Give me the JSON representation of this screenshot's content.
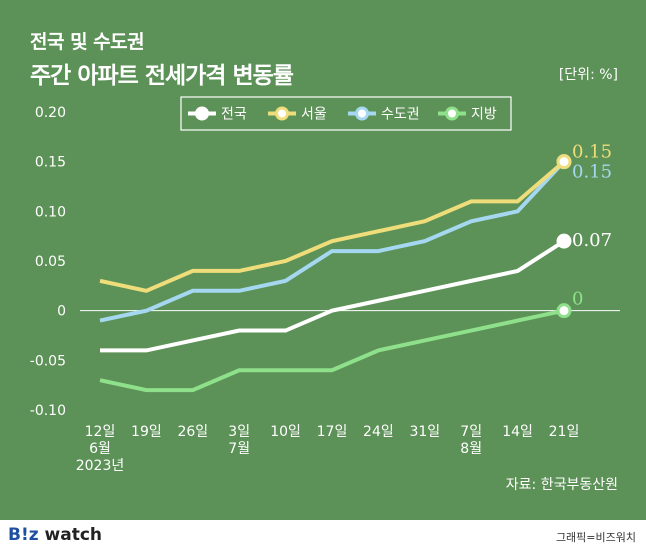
{
  "title_line1": "전국 및 수도권",
  "title_line2": "주간 아파트 전세가격 변동률",
  "unit": "[단위: %]",
  "source": "자료: 한국부동산원",
  "logo": {
    "b": "B",
    "iz": "!z",
    "watch": "watch"
  },
  "credit": "그래픽=비즈워치",
  "colors": {
    "background": "#5c9157",
    "national": "#ffffff",
    "seoul": "#eedd7a",
    "capital": "#a5d8f0",
    "regional": "#8fe08a"
  },
  "chart_data": {
    "type": "line",
    "x_ticks": [
      [
        "12일",
        "6월",
        "2023년"
      ],
      [
        "19일"
      ],
      [
        "26일"
      ],
      [
        "3일",
        "7월"
      ],
      [
        "10일"
      ],
      [
        "17일"
      ],
      [
        "24일"
      ],
      [
        "31일"
      ],
      [
        "7일",
        "8월"
      ],
      [
        "14일"
      ],
      [
        "21일"
      ]
    ],
    "y_ticks": [
      "0.20",
      "0.15",
      "0.10",
      "0.05",
      "0",
      "-0.05",
      "-0.10"
    ],
    "y_tick_values": [
      0.2,
      0.15,
      0.1,
      0.05,
      0,
      -0.05,
      -0.1
    ],
    "ylim": [
      -0.1,
      0.2
    ],
    "legend_position": "top",
    "series": [
      {
        "name": "전국",
        "color": "#ffffff",
        "values": [
          -0.04,
          -0.04,
          -0.03,
          -0.02,
          -0.02,
          0.0,
          0.01,
          0.02,
          0.03,
          0.04,
          0.07
        ],
        "end_label": "0.07"
      },
      {
        "name": "서울",
        "color": "#eedd7a",
        "values": [
          0.03,
          0.02,
          0.04,
          0.04,
          0.05,
          0.07,
          0.08,
          0.09,
          0.11,
          0.11,
          0.15
        ],
        "end_label": "0.15"
      },
      {
        "name": "수도권",
        "color": "#a5d8f0",
        "values": [
          -0.01,
          0.0,
          0.02,
          0.02,
          0.03,
          0.06,
          0.06,
          0.07,
          0.09,
          0.1,
          0.15
        ],
        "end_label": "0.15"
      },
      {
        "name": "지방",
        "color": "#8fe08a",
        "values": [
          -0.07,
          -0.08,
          -0.08,
          -0.06,
          -0.06,
          -0.06,
          -0.04,
          -0.03,
          -0.02,
          -0.01,
          0.0
        ],
        "end_label": "0"
      }
    ]
  }
}
